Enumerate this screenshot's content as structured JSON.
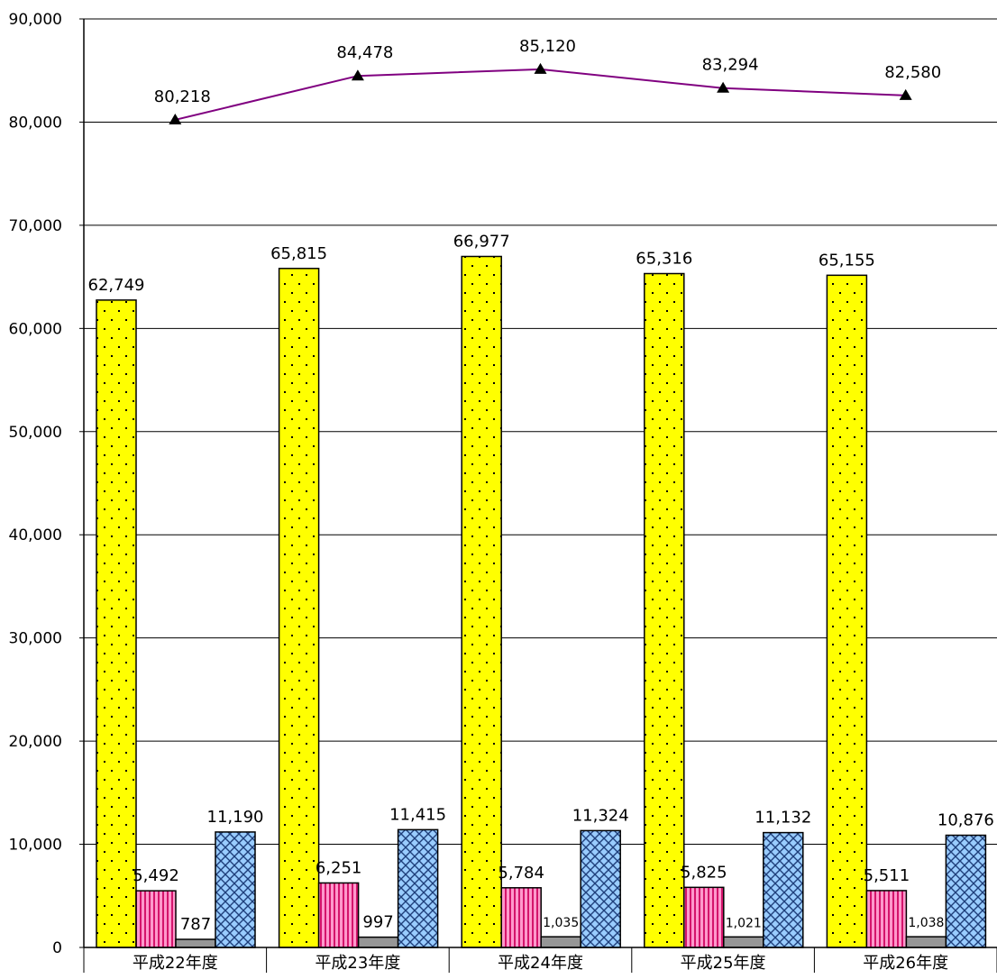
{
  "chart_data": {
    "type": "bar",
    "categories": [
      "平成22年度",
      "平成23年度",
      "平成24年度",
      "平成25年度",
      "平成26年度"
    ],
    "series": [
      {
        "values": [
          62749,
          65815,
          66977,
          65316,
          65155
        ],
        "labels": [
          "62,749",
          "65,815",
          "66,977",
          "65,316",
          "65,155"
        ],
        "color": "#ffff00",
        "pattern": "dots"
      },
      {
        "values": [
          5492,
          6251,
          5784,
          5825,
          5511
        ],
        "labels": [
          "5,492",
          "6,251",
          "5,784",
          "5,825",
          "5,511"
        ],
        "color": "#ff99cc",
        "pattern": "vertical-stripes"
      },
      {
        "values": [
          787,
          997,
          1035,
          1021,
          1038
        ],
        "labels": [
          "787",
          "997",
          "1,035",
          "1,021",
          "1,038"
        ],
        "color": "#969696",
        "pattern": "solid"
      },
      {
        "values": [
          11190,
          11415,
          11324,
          11132,
          10876
        ],
        "labels": [
          "11,190",
          "11,415",
          "11,324",
          "11,132",
          "10,876"
        ],
        "color": "#99ccff",
        "pattern": "diamond-grid"
      }
    ],
    "line_series": {
      "values": [
        80218,
        84478,
        85120,
        83294,
        82580
      ],
      "labels": [
        "80,218",
        "84,478",
        "85,120",
        "83,294",
        "82,580"
      ],
      "color": "#800080",
      "marker": "triangle"
    },
    "ylim": [
      0,
      90000
    ],
    "yticks": [
      0,
      10000,
      20000,
      30000,
      40000,
      50000,
      60000,
      70000,
      80000,
      90000
    ],
    "ytick_labels": [
      "0",
      "10,000",
      "20,000",
      "30,000",
      "40,000",
      "50,000",
      "60,000",
      "70,000",
      "80,000",
      "90,000"
    ],
    "grid": true
  }
}
